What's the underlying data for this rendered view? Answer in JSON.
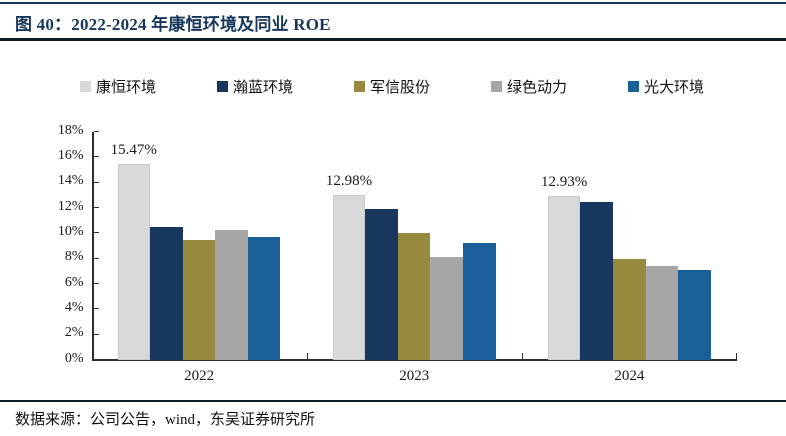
{
  "figure": {
    "title": "图 40：2022-2024 年康恒环境及同业 ROE",
    "source_note": "数据来源：公司公告，wind，东吴证券研究所"
  },
  "colors": {
    "title_accent": "#17365d",
    "axis": "#2e2e2e",
    "series": [
      "#d9d9d9",
      "#17375e",
      "#97893e",
      "#a6a6a6",
      "#1b5f99"
    ]
  },
  "chart_data": {
    "type": "bar",
    "title": "图 40：2022-2024 年康恒环境及同业 ROE",
    "categories": [
      "2022",
      "2023",
      "2024"
    ],
    "series": [
      {
        "name": "康恒环境",
        "color": "#d9d9d9",
        "values": [
          15.47,
          12.98,
          12.93
        ]
      },
      {
        "name": "瀚蓝环境",
        "color": "#17375e",
        "values": [
          10.5,
          11.9,
          12.4
        ]
      },
      {
        "name": "军信股份",
        "color": "#97893e",
        "values": [
          9.4,
          10.0,
          7.9
        ]
      },
      {
        "name": "绿色动力",
        "color": "#a6a6a6",
        "values": [
          10.2,
          8.1,
          7.4
        ]
      },
      {
        "name": "光大环境",
        "color": "#1b5f99",
        "values": [
          9.7,
          9.2,
          7.1
        ]
      }
    ],
    "data_labels": [
      {
        "series": 0,
        "category": 0,
        "text": "15.47%"
      },
      {
        "series": 0,
        "category": 1,
        "text": "12.98%"
      },
      {
        "series": 0,
        "category": 2,
        "text": "12.93%"
      }
    ],
    "xlabel": "",
    "ylabel": "",
    "ylim": [
      0,
      18
    ],
    "ytick_step": 2,
    "ytick_labels": [
      "0%",
      "2%",
      "4%",
      "6%",
      "8%",
      "10%",
      "12%",
      "14%",
      "16%",
      "18%"
    ],
    "grid": false,
    "legend_position": "top"
  }
}
